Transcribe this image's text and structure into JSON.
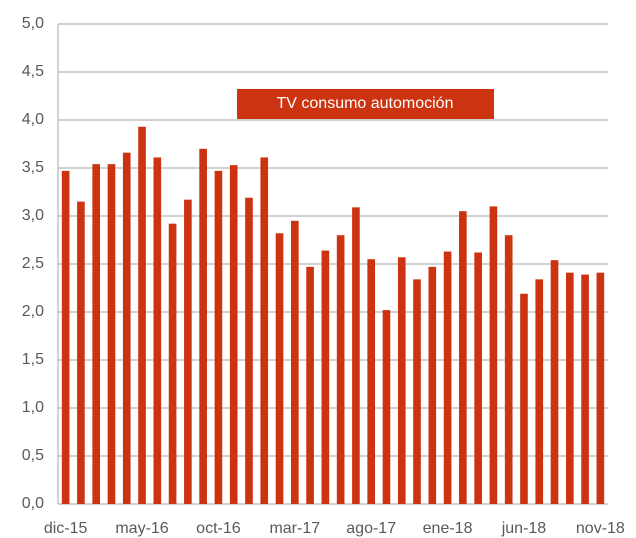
{
  "chart_data": {
    "type": "bar",
    "categories": [
      "dic-15",
      null,
      null,
      null,
      null,
      "may-16",
      null,
      null,
      null,
      null,
      "oct-16",
      null,
      null,
      null,
      null,
      "mar-17",
      null,
      null,
      null,
      null,
      "ago-17",
      null,
      null,
      null,
      null,
      "ene-18",
      null,
      null,
      null,
      null,
      "jun-18",
      null,
      null,
      null,
      null,
      "nov-18"
    ],
    "series": [
      {
        "name": "TV consumo automoción",
        "color": "#cc3311",
        "values": [
          3.47,
          3.15,
          3.54,
          3.54,
          3.66,
          3.93,
          3.61,
          2.92,
          3.17,
          3.7,
          3.47,
          3.53,
          3.19,
          3.61,
          2.82,
          2.95,
          2.47,
          2.64,
          2.8,
          3.09,
          2.55,
          2.02,
          2.57,
          2.34,
          2.47,
          2.63,
          3.05,
          2.62,
          3.1,
          2.8,
          2.19,
          2.34,
          2.54,
          2.41,
          2.39,
          2.41
        ]
      }
    ],
    "ylim": [
      0,
      5
    ],
    "yticks": [
      {
        "value": 0,
        "label": "0,0"
      },
      {
        "value": 0.5,
        "label": "0,5"
      },
      {
        "value": 1,
        "label": "1,0"
      },
      {
        "value": 1.5,
        "label": "1,5"
      },
      {
        "value": 2,
        "label": "2,0"
      },
      {
        "value": 2.5,
        "label": "2,5"
      },
      {
        "value": 3,
        "label": "3,0"
      },
      {
        "value": 3.5,
        "label": "3,5"
      },
      {
        "value": 4,
        "label": "4,0"
      },
      {
        "value": 4.5,
        "label": "4,5"
      },
      {
        "value": 5,
        "label": "5,0"
      }
    ],
    "grid": true
  }
}
